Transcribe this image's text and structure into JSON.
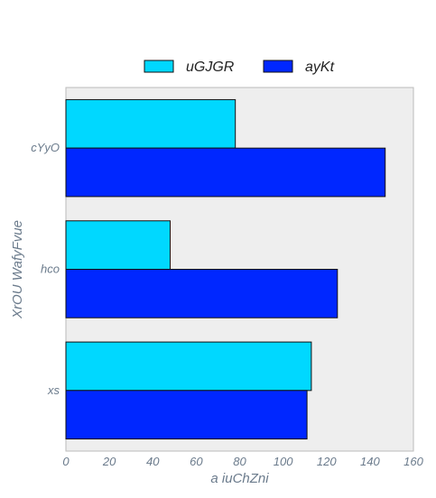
{
  "chart_data": {
    "type": "bar",
    "orientation": "horizontal",
    "categories": [
      "cYyO",
      "hco",
      "xs"
    ],
    "series": [
      {
        "name": "uGJGR",
        "color": "#00d8ff",
        "values": [
          78,
          48,
          113
        ]
      },
      {
        "name": "ayKt",
        "color": "#0027ff",
        "values": [
          147,
          125,
          111
        ]
      }
    ],
    "xlabel": "a iuChZni",
    "ylabel": "XrOU WafyFvue",
    "xlim": [
      0,
      160
    ],
    "xticks": [
      "0",
      "20",
      "40",
      "60",
      "80",
      "100",
      "120",
      "140",
      "160"
    ],
    "legend_position": "top-center",
    "background_color": "#eeeeee",
    "grid": false
  }
}
